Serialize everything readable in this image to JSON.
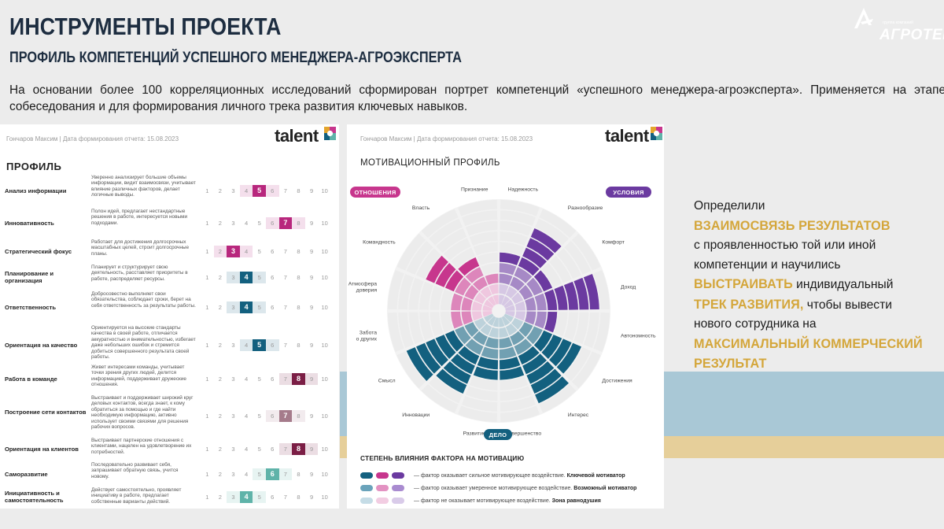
{
  "header": {
    "title": "ИНСТРУМЕНТЫ ПРОЕКТА",
    "subtitle": "ПРОФИЛЬ КОМПЕТЕНЦИЙ УСПЕШНОГО МЕНЕДЖЕРА-АГРОЭКСПЕРТА",
    "intro": "На основании более 100 корреляционных исследований сформирован портрет компетенций «успешного менеджера-агроэксперта». Применяется на этапе собеседования и для формирования личного трека развития ключевых навыков."
  },
  "logo": {
    "small_text": "группа компаний",
    "name": "АГРОТЕК"
  },
  "profile_card": {
    "header": "Гончаров Максим | Дата формирования отчета: 15.08.2023",
    "brand": "talent",
    "section_title": "ПРОФИЛЬ",
    "scale_numbers": [
      "1",
      "2",
      "3",
      "4",
      "5",
      "6",
      "7",
      "8",
      "9",
      "10"
    ],
    "rows": [
      {
        "label": "Анализ информации",
        "desc": "Уверенно анализирует большие объемы информации, видит взаимосвязи, учитывает влияние различных факторов, делает логичные выводы.",
        "value": 5,
        "color": "#b8277d",
        "range": [
          4,
          6
        ]
      },
      {
        "label": "Инновативность",
        "desc": "Полон идей, предлагает нестандартные решения в работе, интересуется новыми подходами.",
        "value": 7,
        "color": "#b8277d",
        "range": [
          6,
          8
        ]
      },
      {
        "label": "Стратегический фокус",
        "desc": "Работает для достижения долгосрочных масштабных целей, строит долгосрочные планы.",
        "value": 3,
        "color": "#b8277d",
        "range": [
          2,
          4
        ]
      },
      {
        "label": "Планирование и организация",
        "desc": "Планирует и структурирует свою деятельность, расставляет приоритеты в работе, распределяет ресурсы.",
        "value": 4,
        "color": "#13607f",
        "range": [
          3,
          5
        ]
      },
      {
        "label": "Ответственность",
        "desc": "Добросовестно выполняет свои обязательства, соблюдает сроки, берет на себя ответственность за результаты работы.",
        "value": 4,
        "color": "#13607f",
        "range": [
          3,
          5
        ]
      },
      {
        "label": "Ориентация на качество",
        "desc": "Ориентируется на высокие стандарты качества в своей работе, отличается аккуратностью и внимательностью, избегает даже небольших ошибок и стремится добиться совершенного результата своей работы.",
        "value": 5,
        "color": "#13607f",
        "range": [
          4,
          6
        ]
      },
      {
        "label": "Работа в команде",
        "desc": "Живет интересами команды, учитывает точки зрения других людей, делится информацией, поддерживает дружеские отношения.",
        "value": 8,
        "color": "#7b1e45",
        "range": [
          7,
          9
        ]
      },
      {
        "label": "Построение сети контактов",
        "desc": "Выстраивает и поддерживает широкий круг деловых контактов, всегда знает, к кому обратиться за помощью и где найти необходимую информацию, активно использует своими связями для решения рабочих вопросов.",
        "value": 7,
        "color": "#a57b8b",
        "range": [
          6,
          8
        ]
      },
      {
        "label": "Ориентация на клиентов",
        "desc": "Выстраивает партнерские отношения с клиентами, нацелен на удовлетворение их потребностей.",
        "value": 8,
        "color": "#7b1e45",
        "range": [
          7,
          9
        ]
      },
      {
        "label": "Саморазвитие",
        "desc": "Последовательно развивает себя, запрашивает обратную связь, учится новому.",
        "value": 6,
        "color": "#5fb3a9",
        "range": [
          5,
          7
        ]
      },
      {
        "label": "Инициативность и самостоятельность",
        "desc": "Действует самостоятельно, проявляет инициативу в работе, предлагает собственные варианты действий.",
        "value": 4,
        "color": "#5fb3a9",
        "range": [
          3,
          5
        ]
      }
    ]
  },
  "motivation_card": {
    "header": "Гончаров Максим | Дата формирования отчета: 15.08.2023",
    "brand": "talent",
    "title": "МОТИВАЦИОННЫЙ ПРОФИЛЬ",
    "pills": {
      "relations": "ОТНОШЕНИЯ",
      "conditions": "УСЛОВИЯ",
      "work": "ДЕЛО"
    },
    "factors": [
      {
        "label": "Надежность",
        "value": 5,
        "group": "conditions"
      },
      {
        "label": "Разнообразие",
        "value": 8,
        "group": "conditions"
      },
      {
        "label": "Комфорт",
        "value": 5,
        "group": "conditions"
      },
      {
        "label": "Доход",
        "value": 9,
        "group": "conditions"
      },
      {
        "label": "Автономность",
        "value": 5,
        "group": "conditions"
      },
      {
        "label": "Достижения",
        "value": 8,
        "group": "work"
      },
      {
        "label": "Интерес",
        "value": 9,
        "group": "work"
      },
      {
        "label": "Совершенство",
        "value": 6,
        "group": "work"
      },
      {
        "label": "Развитие",
        "value": 6,
        "group": "work"
      },
      {
        "label": "Инновации",
        "value": 8,
        "group": "work"
      },
      {
        "label": "Смысл",
        "value": 9,
        "group": "work"
      },
      {
        "label": "Забота о других",
        "value": 4,
        "group": "relations"
      },
      {
        "label": "Атмосфера доверия",
        "value": 4,
        "group": "relations"
      },
      {
        "label": "Командность",
        "value": 7,
        "group": "relations"
      },
      {
        "label": "Власть",
        "value": 5,
        "group": "relations"
      },
      {
        "label": "Признание",
        "value": 3,
        "group": "relations"
      }
    ],
    "legend_title": "СТЕПЕНЬ ВЛИЯНИЯ ФАКТОРА НА МОТИВАЦИЮ",
    "legend": [
      {
        "prefix": "— фактор оказывает сильное мотивирующее воздействие.",
        "bold": "Ключевой мотиватор",
        "colors": [
          "#13607f",
          "#c7368d",
          "#6b3aa0"
        ]
      },
      {
        "prefix": "— фактор оказывает умеренное мотивирующее воздействие.",
        "bold": "Возможный мотиватор",
        "colors": [
          "#6aa3bb",
          "#e392c2",
          "#a98bd0"
        ]
      },
      {
        "prefix": "— фактор не оказывает мотивирующее воздействие.",
        "bold": "Зона равнодушия",
        "colors": [
          "#c5dce6",
          "#f2cde2",
          "#d9cbe9"
        ]
      }
    ],
    "colors": {
      "conditions": "#6b3aa0",
      "work": "#13607f",
      "relations": "#c7368d"
    }
  },
  "side_text": {
    "p1": "Определили",
    "hl1": "взаимосвязь результатов",
    "p2": "с проявленностью той или иной компетенции и научились",
    "hl2": "выстраивать",
    "p3": "индивидуальный",
    "hl3": "трек развития,",
    "p4": "чтобы вывести нового сотрудника на",
    "hl4": "максимальный коммерческий результат"
  }
}
